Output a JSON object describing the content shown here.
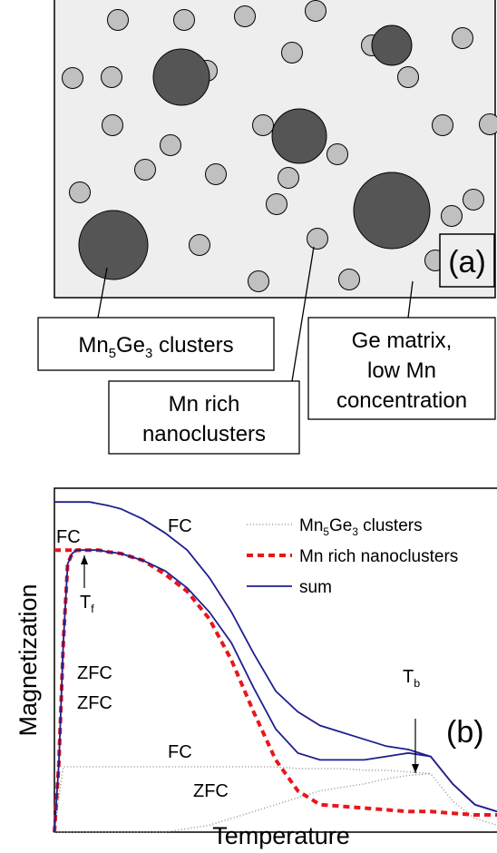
{
  "panel_a": {
    "label": "(a)",
    "callouts": [
      {
        "lines": [
          [
            {
              "text": "Mn"
            },
            {
              "sub": "5"
            },
            {
              "text": "Ge"
            },
            {
              "sub": "3"
            },
            {
              "text": " clusters"
            }
          ]
        ]
      },
      {
        "lines": [
          [
            {
              "text": "Mn rich"
            }
          ],
          [
            {
              "text": "nanoclusters"
            }
          ]
        ]
      },
      {
        "lines": [
          [
            {
              "text": "Ge matrix,"
            }
          ],
          [
            {
              "text": "low Mn"
            }
          ],
          [
            {
              "text": "concentration"
            }
          ]
        ]
      }
    ]
  },
  "chart_data": {
    "type": "line",
    "panel_label": "(b)",
    "x_label": "Temperature",
    "y_label": "Magnetization",
    "xlim": [
      0,
      100
    ],
    "ylim": [
      0,
      100
    ],
    "x": [
      0,
      1,
      2,
      3,
      4,
      5,
      6,
      7,
      8,
      10,
      12,
      15,
      20,
      25,
      30,
      35,
      40,
      45,
      50,
      55,
      60,
      65,
      70,
      75,
      80,
      85,
      90,
      95,
      100
    ],
    "series": [
      {
        "name": [
          {
            "text": "Mn"
          },
          {
            "sub": "5"
          },
          {
            "text": "Ge"
          },
          {
            "sub": "3"
          },
          {
            "text": " clusters"
          }
        ],
        "color": "#999999",
        "label_color": "#000000",
        "dash": "dotted",
        "curves": [
          {
            "label": "FC",
            "values": [
              0,
              10,
              19,
              19,
              19,
              19,
              19,
              19,
              19,
              19,
              19,
              19,
              19,
              19,
              19,
              19,
              19,
              19,
              19,
              18.5,
              18.5,
              18.5,
              18,
              18,
              17.5,
              17,
              9,
              4,
              2
            ]
          },
          {
            "label": "ZFC",
            "values": [
              0,
              0,
              0,
              0,
              0,
              0,
              0,
              0,
              0,
              0,
              0,
              0,
              0,
              0,
              1,
              2,
              4,
              6,
              8,
              10,
              12,
              13,
              14,
              15.5,
              16.5,
              17,
              null,
              null,
              null
            ]
          }
        ]
      },
      {
        "name": [
          {
            "text": "Mn rich nanoclusters"
          }
        ],
        "color": "#e8161b",
        "label_color": "#e8161b",
        "dash": "dashed",
        "curves": [
          {
            "label": "FC",
            "values": [
              82,
              82,
              82,
              82,
              82,
              82,
              82,
              null,
              null,
              null,
              null,
              null,
              null,
              null,
              null,
              null,
              null,
              null,
              null,
              null,
              null,
              null,
              null,
              null,
              null,
              null,
              null,
              null,
              null
            ]
          },
          {
            "label": "ZFC",
            "values": [
              0,
              20,
              55,
              78,
              81,
              82,
              82,
              82,
              82,
              82,
              81.5,
              81,
              79,
              75,
              70,
              62,
              50,
              35,
              21,
              12,
              8,
              7.5,
              7,
              6.5,
              6,
              6,
              5.5,
              5,
              5
            ]
          }
        ]
      },
      {
        "name": [
          {
            "text": "sum"
          }
        ],
        "color": "#1f1f8f",
        "label_color": "#1f1f8f",
        "dash": "solid",
        "curves": [
          {
            "label": "FC",
            "values": [
              96,
              96,
              96,
              96,
              96,
              96,
              96,
              96,
              96,
              95.5,
              95,
              94,
              91,
              87,
              82,
              74,
              64,
              52,
              41,
              35,
              31,
              29,
              27,
              25,
              24,
              22,
              14,
              8,
              6
            ]
          },
          {
            "label": "ZFC",
            "values": [
              0,
              20,
              55,
              78,
              81,
              82,
              82,
              82,
              82,
              82,
              81.5,
              81,
              79,
              76,
              71,
              64,
              55,
              42,
              30,
              23,
              21,
              21,
              21,
              22,
              23,
              22,
              14,
              8,
              6
            ]
          }
        ]
      }
    ],
    "annotations": [
      {
        "parts": [
          {
            "text": "T"
          },
          {
            "sub": "f"
          }
        ]
      },
      {
        "parts": [
          {
            "text": "T"
          },
          {
            "sub": "b"
          }
        ]
      }
    ]
  }
}
